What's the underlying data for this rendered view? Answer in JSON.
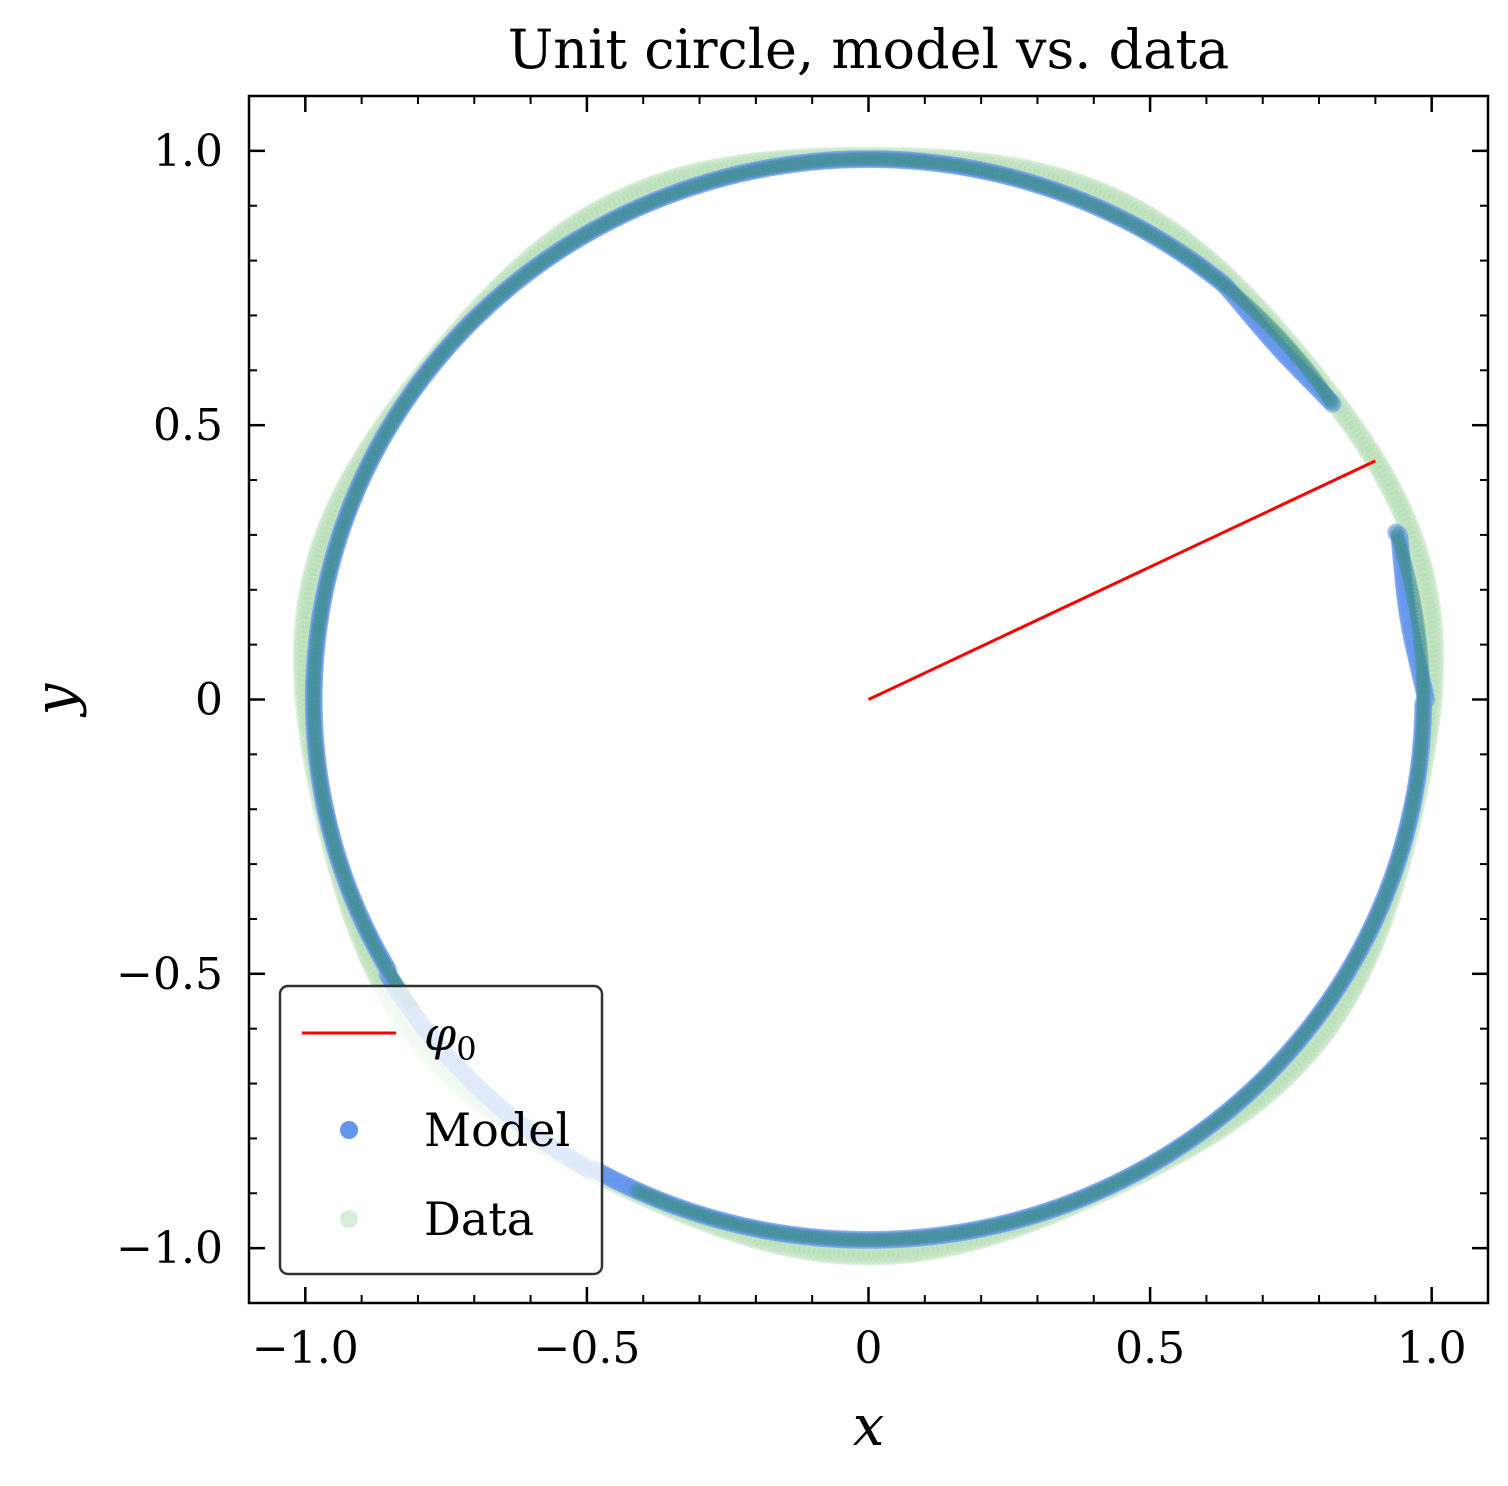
{
  "chart_data": {
    "type": "scatter",
    "title": "Unit circle, model vs. data",
    "xlabel": "x",
    "ylabel": "y",
    "xlim": [
      -1.1,
      1.1
    ],
    "ylim": [
      -1.1,
      1.1
    ],
    "x_ticks": [
      -1.0,
      -0.5,
      0,
      0.5,
      1.0
    ],
    "y_ticks": [
      -1.0,
      -0.5,
      0,
      0.5,
      1.0
    ],
    "x_tick_labels": [
      "−1.0",
      "−0.5",
      "0",
      "0.5",
      "1.0"
    ],
    "y_tick_labels": [
      "−1.0",
      "−0.5",
      "0",
      "0.5",
      "1.0"
    ],
    "grid": false,
    "legend_position": "lower-left",
    "series": [
      {
        "name": "φ0",
        "legend_label": "φ",
        "legend_sub": "0",
        "kind": "line",
        "color": "#ff0000",
        "x": [
          0,
          0.9
        ],
        "y": [
          0,
          0.435
        ]
      },
      {
        "name": "Model",
        "kind": "scatter",
        "color": "#6495ED",
        "radius_model": "unit circle with perturbation near angle 0–40°",
        "points": [
          [
            1.0,
            0.0
          ],
          [
            0.995,
            0.1
          ],
          [
            0.98,
            0.2
          ],
          [
            0.96,
            0.28
          ],
          [
            0.95,
            0.3
          ],
          [
            0.84,
            0.54
          ],
          [
            0.8,
            0.6
          ],
          [
            0.72,
            0.69
          ],
          [
            0.6,
            0.8
          ],
          [
            0.4,
            0.92
          ],
          [
            0.2,
            0.98
          ],
          [
            0.0,
            0.99
          ],
          [
            -0.2,
            0.98
          ],
          [
            -0.4,
            0.91
          ],
          [
            -0.6,
            0.8
          ],
          [
            -0.8,
            0.59
          ],
          [
            -0.92,
            0.38
          ],
          [
            -0.98,
            0.19
          ],
          [
            -1.0,
            0.0
          ],
          [
            -0.98,
            -0.2
          ],
          [
            -0.92,
            -0.39
          ],
          [
            -0.8,
            -0.6
          ],
          [
            -0.6,
            -0.8
          ],
          [
            -0.4,
            -0.92
          ],
          [
            -0.2,
            -0.98
          ],
          [
            0.0,
            -0.99
          ],
          [
            0.2,
            -0.98
          ],
          [
            0.4,
            -0.92
          ],
          [
            0.6,
            -0.8
          ],
          [
            0.8,
            -0.6
          ],
          [
            0.92,
            -0.39
          ],
          [
            0.98,
            -0.2
          ]
        ]
      },
      {
        "name": "Data",
        "kind": "scatter",
        "color": "#8fcf8f",
        "radius_model": "unit circle",
        "points": [
          [
            1.0,
            0.0
          ],
          [
            0.98,
            0.2
          ],
          [
            0.92,
            0.39
          ],
          [
            0.8,
            0.6
          ],
          [
            0.6,
            0.8
          ],
          [
            0.4,
            0.92
          ],
          [
            0.2,
            0.98
          ],
          [
            0.0,
            1.0
          ],
          [
            -0.2,
            0.98
          ],
          [
            -0.4,
            0.92
          ],
          [
            -0.6,
            0.8
          ],
          [
            -0.8,
            0.6
          ],
          [
            -0.92,
            0.39
          ],
          [
            -0.98,
            0.2
          ],
          [
            -1.0,
            0.0
          ],
          [
            -0.98,
            -0.2
          ],
          [
            -0.92,
            -0.39
          ],
          [
            -0.8,
            -0.6
          ],
          [
            -0.6,
            -0.8
          ],
          [
            -0.4,
            -0.92
          ],
          [
            -0.2,
            -0.98
          ],
          [
            0.0,
            -1.0
          ],
          [
            0.2,
            -0.98
          ],
          [
            0.4,
            -0.92
          ],
          [
            0.6,
            -0.8
          ],
          [
            0.8,
            -0.6
          ],
          [
            0.92,
            -0.39
          ],
          [
            0.98,
            -0.2
          ]
        ]
      }
    ]
  }
}
